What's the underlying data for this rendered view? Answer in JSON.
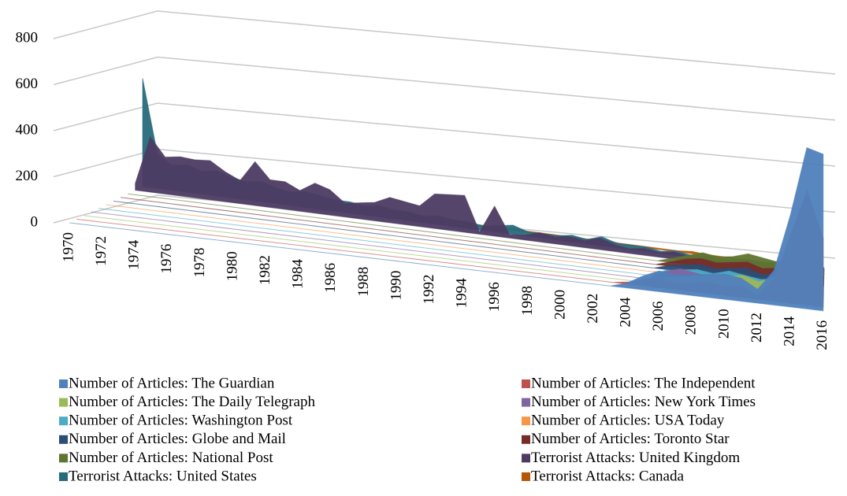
{
  "chart_data": {
    "type": "area3d",
    "categories": [
      "1970",
      null,
      "1972",
      null,
      "1974",
      null,
      "1976",
      null,
      "1978",
      null,
      "1980",
      null,
      "1982",
      null,
      "1984",
      null,
      "1986",
      null,
      "1988",
      null,
      "1990",
      null,
      "1992",
      null,
      "1994",
      null,
      "1996",
      null,
      "1998",
      null,
      "2000",
      null,
      "2002",
      null,
      "2004",
      null,
      "2006",
      null,
      "2008",
      null,
      "2010",
      null,
      "2012",
      null,
      "2014",
      null,
      "2016"
    ],
    "ylim": [
      0,
      800
    ],
    "yticks": [
      0,
      200,
      400,
      600,
      800
    ],
    "grid": true,
    "legend": "bottom",
    "series": [
      {
        "name": "Number of Articles: The Guardian",
        "color": "#4f81bd",
        "values": [
          0,
          0,
          0,
          0,
          0,
          0,
          0,
          0,
          0,
          0,
          0,
          0,
          0,
          0,
          0,
          0,
          0,
          0,
          0,
          0,
          0,
          0,
          0,
          0,
          0,
          0,
          0,
          0,
          0,
          0,
          0,
          0,
          0,
          0,
          20,
          60,
          90,
          80,
          90,
          100,
          110,
          100,
          60,
          150,
          400,
          700,
          680
        ]
      },
      {
        "name": "Number of Articles: The Independent",
        "color": "#c0504d",
        "values": [
          0,
          0,
          0,
          0,
          0,
          0,
          0,
          0,
          0,
          0,
          0,
          0,
          0,
          0,
          0,
          0,
          0,
          0,
          0,
          0,
          0,
          0,
          0,
          0,
          0,
          0,
          0,
          0,
          0,
          0,
          0,
          0,
          0,
          0,
          10,
          30,
          40,
          30,
          40,
          50,
          40,
          50,
          20,
          100,
          300,
          500,
          300
        ]
      },
      {
        "name": "Number of Articles: The Daily Telegraph",
        "color": "#9bbb59",
        "values": [
          0,
          0,
          0,
          0,
          0,
          0,
          0,
          0,
          0,
          0,
          0,
          0,
          0,
          0,
          0,
          0,
          0,
          0,
          0,
          0,
          0,
          0,
          0,
          0,
          0,
          0,
          0,
          0,
          0,
          0,
          0,
          0,
          0,
          0,
          0,
          0,
          30,
          40,
          50,
          60,
          70,
          80,
          60,
          90,
          120,
          150,
          60
        ]
      },
      {
        "name": "Number of Articles: New York Times",
        "color": "#8064a2",
        "values": [
          0,
          0,
          0,
          0,
          0,
          0,
          0,
          0,
          0,
          0,
          0,
          0,
          0,
          0,
          0,
          0,
          0,
          0,
          0,
          0,
          0,
          0,
          0,
          0,
          0,
          0,
          0,
          0,
          0,
          0,
          0,
          0,
          0,
          0,
          0,
          0,
          40,
          60,
          50,
          40,
          50,
          60,
          40,
          50,
          70,
          90,
          40
        ]
      },
      {
        "name": "Number of Articles: Washington Post",
        "color": "#4bacc6",
        "values": [
          0,
          0,
          0,
          0,
          0,
          0,
          0,
          0,
          0,
          0,
          0,
          0,
          0,
          0,
          0,
          0,
          0,
          0,
          0,
          0,
          0,
          0,
          0,
          0,
          0,
          0,
          0,
          0,
          0,
          0,
          0,
          0,
          0,
          0,
          0,
          0,
          30,
          40,
          50,
          40,
          60,
          50,
          40,
          50,
          70,
          80,
          30
        ]
      },
      {
        "name": "Number of Articles: USA Today",
        "color": "#f79646",
        "values": [
          0,
          0,
          0,
          0,
          0,
          0,
          0,
          0,
          0,
          0,
          0,
          0,
          0,
          0,
          0,
          0,
          0,
          0,
          0,
          0,
          0,
          0,
          0,
          0,
          0,
          0,
          0,
          0,
          0,
          0,
          0,
          0,
          0,
          0,
          0,
          0,
          10,
          20,
          20,
          10,
          20,
          30,
          20,
          20,
          30,
          40,
          20
        ]
      },
      {
        "name": "Number of Articles: Globe and Mail",
        "color": "#2c4d75",
        "values": [
          0,
          0,
          0,
          0,
          0,
          0,
          0,
          0,
          0,
          0,
          0,
          0,
          0,
          0,
          0,
          0,
          0,
          0,
          0,
          0,
          0,
          0,
          0,
          0,
          0,
          0,
          0,
          0,
          0,
          0,
          0,
          0,
          0,
          0,
          0,
          0,
          20,
          30,
          40,
          30,
          40,
          50,
          30,
          40,
          60,
          70,
          30
        ]
      },
      {
        "name": "Number of Articles: Toronto Star",
        "color": "#772c2a",
        "values": [
          0,
          0,
          0,
          0,
          0,
          0,
          0,
          0,
          0,
          0,
          0,
          0,
          0,
          0,
          0,
          0,
          0,
          0,
          0,
          0,
          0,
          0,
          0,
          0,
          0,
          0,
          0,
          0,
          0,
          0,
          0,
          0,
          0,
          0,
          0,
          0,
          20,
          40,
          50,
          40,
          50,
          60,
          40,
          50,
          70,
          90,
          40
        ]
      },
      {
        "name": "Number of Articles: National Post",
        "color": "#5f7530",
        "values": [
          0,
          0,
          0,
          0,
          0,
          0,
          0,
          0,
          0,
          0,
          0,
          0,
          0,
          0,
          0,
          0,
          0,
          0,
          0,
          0,
          0,
          0,
          0,
          0,
          0,
          0,
          0,
          0,
          0,
          0,
          0,
          0,
          0,
          0,
          0,
          0,
          20,
          40,
          60,
          50,
          60,
          80,
          70,
          60,
          90,
          120,
          50
        ]
      },
      {
        "name": "Terrorist Attacks: United Kingdom",
        "color": "#4d3b62",
        "values": [
          30,
          240,
          160,
          170,
          165,
          170,
          130,
          100,
          190,
          120,
          120,
          90,
          130,
          110,
          60,
          70,
          80,
          110,
          100,
          90,
          150,
          155,
          160,
          10,
          130,
          15,
          20,
          40,
          30,
          40,
          30,
          50,
          30,
          20,
          30,
          20,
          30,
          20,
          30,
          20,
          30,
          40,
          30,
          30,
          80,
          60,
          40
        ]
      },
      {
        "name": "Terrorist Attacks: United States",
        "color": "#276a7c",
        "values": [
          470,
          150,
          110,
          120,
          100,
          110,
          90,
          80,
          90,
          70,
          60,
          70,
          60,
          50,
          50,
          40,
          50,
          40,
          40,
          30,
          40,
          30,
          30,
          20,
          30,
          40,
          20,
          20,
          20,
          30,
          20,
          40,
          20,
          20,
          20,
          10,
          20,
          10,
          20,
          10,
          10,
          20,
          20,
          30,
          30,
          40,
          30
        ]
      },
      {
        "name": "Terrorist Attacks: Canada",
        "color": "#b65708",
        "values": [
          10,
          20,
          10,
          10,
          5,
          10,
          5,
          5,
          5,
          5,
          5,
          10,
          10,
          5,
          5,
          10,
          5,
          5,
          5,
          5,
          5,
          5,
          5,
          5,
          5,
          5,
          5,
          5,
          5,
          5,
          5,
          10,
          5,
          5,
          5,
          5,
          5,
          10,
          5,
          5,
          5,
          5,
          5,
          10,
          30,
          20,
          10
        ]
      }
    ]
  }
}
